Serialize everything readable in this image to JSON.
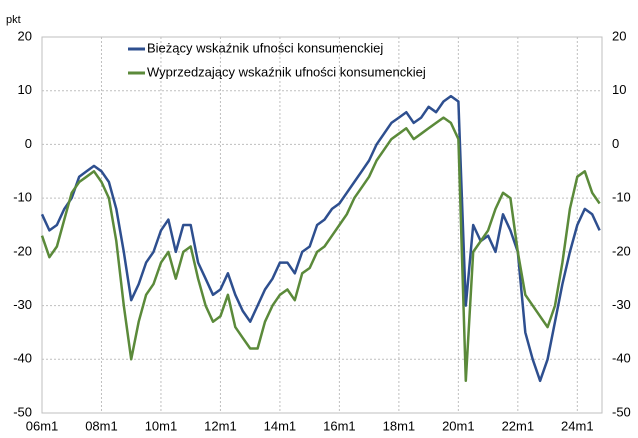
{
  "chart_data": {
    "type": "line",
    "y_label": "pkt",
    "x": [
      2006,
      2006.25,
      2006.5,
      2006.75,
      2007,
      2007.25,
      2007.5,
      2007.75,
      2008,
      2008.25,
      2008.5,
      2008.75,
      2009,
      2009.25,
      2009.5,
      2009.75,
      2010,
      2010.25,
      2010.5,
      2010.75,
      2011,
      2011.25,
      2011.5,
      2011.75,
      2012,
      2012.25,
      2012.5,
      2012.75,
      2013,
      2013.25,
      2013.5,
      2013.75,
      2014,
      2014.25,
      2014.5,
      2014.75,
      2015,
      2015.25,
      2015.5,
      2015.75,
      2016,
      2016.25,
      2016.5,
      2016.75,
      2017,
      2017.25,
      2017.5,
      2017.75,
      2018,
      2018.25,
      2018.5,
      2018.75,
      2019,
      2019.25,
      2019.5,
      2019.75,
      2020,
      2020.25,
      2020.5,
      2020.75,
      2021,
      2021.25,
      2021.5,
      2021.75,
      2022,
      2022.25,
      2022.5,
      2022.75,
      2023,
      2023.25,
      2023.5,
      2023.75,
      2024,
      2024.25,
      2024.5,
      2024.75
    ],
    "series": [
      {
        "name": "Bieżący wskaźnik ufności konsumenckiej",
        "color": "#2e4f8f",
        "values": [
          -13,
          -16,
          -15,
          -12,
          -10,
          -6,
          -5,
          -4,
          -5,
          -7,
          -12,
          -20,
          -29,
          -26,
          -22,
          -20,
          -16,
          -14,
          -20,
          -15,
          -15,
          -22,
          -25,
          -28,
          -27,
          -24,
          -28,
          -31,
          -33,
          -30,
          -27,
          -25,
          -22,
          -22,
          -24,
          -20,
          -19,
          -15,
          -14,
          -12,
          -11,
          -9,
          -7,
          -5,
          -3,
          0,
          2,
          4,
          5,
          6,
          4,
          5,
          7,
          6,
          8,
          9,
          8,
          -30,
          -15,
          -18,
          -17,
          -20,
          -13,
          -16,
          -20,
          -35,
          -40,
          -44,
          -40,
          -33,
          -26,
          -20,
          -15,
          -12,
          -13,
          -16
        ]
      },
      {
        "name": "Wyprzedzający wskaźnik ufności konsumenckiej",
        "color": "#5b8a3a",
        "values": [
          -17,
          -21,
          -19,
          -14,
          -9,
          -7,
          -6,
          -5,
          -7,
          -10,
          -18,
          -30,
          -40,
          -33,
          -28,
          -26,
          -22,
          -20,
          -25,
          -20,
          -19,
          -25,
          -30,
          -33,
          -32,
          -28,
          -34,
          -36,
          -38,
          -38,
          -33,
          -30,
          -28,
          -27,
          -29,
          -24,
          -23,
          -20,
          -19,
          -17,
          -15,
          -13,
          -10,
          -8,
          -6,
          -3,
          -1,
          1,
          2,
          3,
          1,
          2,
          3,
          4,
          5,
          4,
          1,
          -44,
          -20,
          -18,
          -16,
          -12,
          -9,
          -10,
          -20,
          -28,
          -30,
          -32,
          -34,
          -30,
          -22,
          -12,
          -6,
          -5,
          -9,
          -11
        ]
      }
    ],
    "xlim": [
      2006,
      2024.83
    ],
    "xticks": [
      {
        "value": 2006,
        "label": "06m1"
      },
      {
        "value": 2008,
        "label": "08m1"
      },
      {
        "value": 2010,
        "label": "10m1"
      },
      {
        "value": 2012,
        "label": "12m1"
      },
      {
        "value": 2014,
        "label": "14m1"
      },
      {
        "value": 2016,
        "label": "16m1"
      },
      {
        "value": 2018,
        "label": "18m1"
      },
      {
        "value": 2020,
        "label": "20m1"
      },
      {
        "value": 2022,
        "label": "22m1"
      },
      {
        "value": 2024,
        "label": "24m1"
      }
    ],
    "ylim": [
      -50,
      20
    ],
    "yticks": [
      -50,
      -40,
      -30,
      -20,
      -10,
      0,
      10,
      20
    ],
    "grid": true
  }
}
